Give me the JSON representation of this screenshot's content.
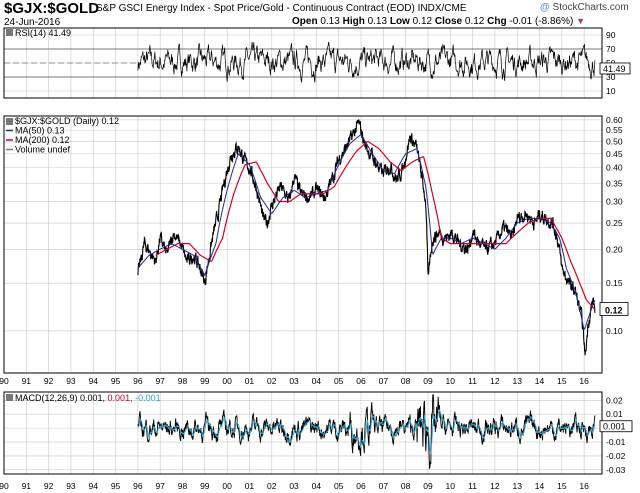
{
  "header": {
    "symbol": "$GJX:$GOLD",
    "description": "S&P GSCI Energy Index - Spot Price/Gold - Continuous Contract (EOD)  INDX/CME",
    "date": "24-Jun-2016",
    "open_label": "Open",
    "open": "0.13",
    "high_label": "High",
    "high": "0.13",
    "low_label": "Low",
    "low": "0.12",
    "close_label": "Close",
    "close": "0.12",
    "chg_label": "Chg",
    "chg": "-0.01 (-8.86%)",
    "credit": "StockCharts.com",
    "credit_prefix": "@"
  },
  "colors": {
    "price": "#000000",
    "ma50": "#1f2a8c",
    "ma200": "#d4002a",
    "macd_signal": "#2aa7d6",
    "grid": "#c8c8c8",
    "up_marker": "#b0305a"
  },
  "chart_data": [
    {
      "panel": "rsi",
      "type": "line",
      "legend": "RSI(14) 41.49",
      "current_value": "41.49",
      "ylim": [
        0,
        100
      ],
      "y_ticks": [
        10,
        30,
        50,
        70,
        90
      ],
      "reference_lines": [
        30,
        70
      ],
      "y_tick_labels": [
        "10",
        "30",
        "50",
        "70",
        "90"
      ]
    },
    {
      "panel": "price",
      "type": "line",
      "scale": "log",
      "ylim": [
        0.07,
        0.62
      ],
      "y_ticks": [
        0.1,
        0.15,
        0.2,
        0.25,
        0.3,
        0.35,
        0.4,
        0.45,
        0.5,
        0.55,
        0.6
      ],
      "y_tick_labels": [
        "0.10",
        "0.15",
        "0.20",
        "0.25",
        "0.30",
        "0.35",
        "0.40",
        "0.45",
        "0.50",
        "0.55",
        "0.60"
      ],
      "current_value": "0.12",
      "legend": [
        {
          "key": "price",
          "text": "$GJX:$GOLD (Daily) 0.12"
        },
        {
          "key": "ma50",
          "text": "MA(50) 0.13"
        },
        {
          "key": "ma200",
          "text": "MA(200) 0.12"
        },
        {
          "key": "volume",
          "text": "Volume undef"
        }
      ],
      "series": [
        {
          "name": "$GJX:$GOLD",
          "x": [
            1996.0,
            1996.3,
            1996.8,
            1997.0,
            1997.3,
            1997.6,
            1997.9,
            1998.2,
            1998.5,
            1998.8,
            1999.0,
            1999.3,
            1999.6,
            1999.9,
            2000.2,
            2000.5,
            2000.8,
            2001.0,
            2001.3,
            2001.6,
            2001.8,
            2002.0,
            2002.4,
            2002.8,
            2003.0,
            2003.3,
            2003.7,
            2004.0,
            2004.4,
            2004.8,
            2005.0,
            2005.3,
            2005.6,
            2005.9,
            2006.2,
            2006.5,
            2006.8,
            2007.0,
            2007.3,
            2007.6,
            2007.9,
            2008.2,
            2008.5,
            2008.7,
            2008.9,
            2009.0,
            2009.2,
            2009.5,
            2009.8,
            2010.1,
            2010.4,
            2010.8,
            2011.0,
            2011.3,
            2011.6,
            2012.0,
            2012.4,
            2012.8,
            2013.0,
            2013.4,
            2013.8,
            2014.0,
            2014.3,
            2014.6,
            2014.8,
            2015.0,
            2015.3,
            2015.6,
            2015.9,
            2016.05,
            2016.2,
            2016.4,
            2016.48
          ],
          "values": [
            0.16,
            0.21,
            0.18,
            0.22,
            0.19,
            0.23,
            0.21,
            0.18,
            0.19,
            0.17,
            0.15,
            0.21,
            0.27,
            0.36,
            0.45,
            0.48,
            0.42,
            0.4,
            0.34,
            0.26,
            0.25,
            0.29,
            0.34,
            0.3,
            0.37,
            0.32,
            0.31,
            0.33,
            0.31,
            0.38,
            0.43,
            0.47,
            0.52,
            0.58,
            0.48,
            0.44,
            0.4,
            0.38,
            0.41,
            0.36,
            0.4,
            0.52,
            0.47,
            0.38,
            0.3,
            0.15,
            0.22,
            0.23,
            0.22,
            0.23,
            0.21,
            0.2,
            0.23,
            0.21,
            0.2,
            0.21,
            0.24,
            0.22,
            0.26,
            0.27,
            0.25,
            0.27,
            0.26,
            0.25,
            0.22,
            0.17,
            0.15,
            0.14,
            0.11,
            0.08,
            0.11,
            0.13,
            0.12
          ]
        },
        {
          "name": "MA(50)",
          "x": [
            1996.0,
            1996.5,
            1997.0,
            1997.5,
            1998.0,
            1998.5,
            1999.0,
            1999.5,
            2000.0,
            2000.5,
            2001.0,
            2001.5,
            2002.0,
            2002.5,
            2003.0,
            2003.5,
            2004.0,
            2004.5,
            2005.0,
            2005.5,
            2006.0,
            2006.5,
            2007.0,
            2007.5,
            2008.0,
            2008.5,
            2008.9,
            2009.2,
            2009.6,
            2010.0,
            2010.5,
            2011.0,
            2011.5,
            2012.0,
            2012.5,
            2013.0,
            2013.5,
            2014.0,
            2014.5,
            2014.9,
            2015.2,
            2015.6,
            2016.0,
            2016.48
          ],
          "values": [
            0.17,
            0.19,
            0.2,
            0.21,
            0.2,
            0.19,
            0.16,
            0.21,
            0.33,
            0.45,
            0.41,
            0.31,
            0.27,
            0.31,
            0.33,
            0.31,
            0.32,
            0.33,
            0.41,
            0.49,
            0.53,
            0.45,
            0.39,
            0.38,
            0.45,
            0.47,
            0.34,
            0.19,
            0.22,
            0.22,
            0.21,
            0.22,
            0.21,
            0.2,
            0.22,
            0.25,
            0.26,
            0.26,
            0.25,
            0.22,
            0.17,
            0.14,
            0.1,
            0.13
          ]
        },
        {
          "name": "MA(200)",
          "x": [
            1996.8,
            1997.3,
            1997.8,
            1998.3,
            1998.8,
            1999.3,
            1999.8,
            2000.3,
            2000.8,
            2001.3,
            2001.8,
            2002.3,
            2002.8,
            2003.3,
            2003.8,
            2004.3,
            2004.8,
            2005.3,
            2005.8,
            2006.3,
            2006.8,
            2007.3,
            2007.8,
            2008.3,
            2008.8,
            2009.2,
            2009.6,
            2010.0,
            2010.5,
            2011.0,
            2011.5,
            2012.0,
            2012.5,
            2013.0,
            2013.5,
            2014.0,
            2014.5,
            2015.0,
            2015.4,
            2015.8,
            2016.1,
            2016.48
          ],
          "values": [
            0.19,
            0.2,
            0.21,
            0.21,
            0.19,
            0.18,
            0.22,
            0.32,
            0.41,
            0.42,
            0.35,
            0.3,
            0.3,
            0.32,
            0.32,
            0.32,
            0.34,
            0.4,
            0.46,
            0.5,
            0.47,
            0.42,
            0.39,
            0.42,
            0.44,
            0.32,
            0.22,
            0.21,
            0.21,
            0.21,
            0.21,
            0.21,
            0.21,
            0.23,
            0.25,
            0.26,
            0.26,
            0.22,
            0.18,
            0.15,
            0.13,
            0.12
          ]
        }
      ]
    },
    {
      "panel": "macd",
      "type": "line",
      "legend": [
        {
          "key": "macd",
          "text": "MACD(12,26,9) 0.001,"
        },
        {
          "key": "signal",
          "text": " 0.001,"
        },
        {
          "key": "hist",
          "text": " -0.001"
        }
      ],
      "current_value": "0.001",
      "ylim": [
        -0.033,
        0.026
      ],
      "y_ticks": [
        -0.03,
        -0.02,
        -0.01,
        0.0,
        0.01,
        0.02
      ],
      "y_tick_labels": [
        "-0.03",
        "-0.02",
        "-0.01",
        "0.00",
        "0.01",
        "0.02"
      ]
    }
  ],
  "x_axis": {
    "xlim": [
      1990.0,
      2016.8
    ],
    "ticks": [
      1990,
      1991,
      1992,
      1993,
      1994,
      1995,
      1996,
      1997,
      1998,
      1999,
      2000,
      2001,
      2002,
      2003,
      2004,
      2005,
      2006,
      2007,
      2008,
      2009,
      2010,
      2011,
      2012,
      2013,
      2014,
      2015,
      2016
    ],
    "tick_labels": [
      "90",
      "91",
      "92",
      "93",
      "94",
      "95",
      "96",
      "97",
      "98",
      "99",
      "00",
      "01",
      "02",
      "03",
      "04",
      "05",
      "06",
      "07",
      "08",
      "09",
      "10",
      "11",
      "12",
      "13",
      "14",
      "15",
      "16"
    ]
  }
}
